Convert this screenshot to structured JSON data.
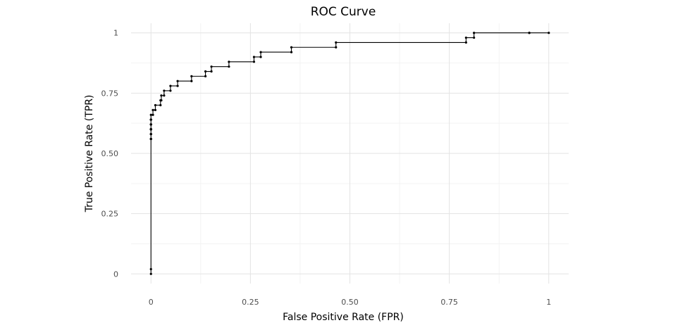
{
  "chart_data": {
    "type": "line",
    "title": "ROC Curve",
    "xlabel": "False Positive Rate (FPR)",
    "ylabel": "True Positive Rate (TPR)",
    "xlim": [
      -0.05,
      1.05
    ],
    "ylim": [
      -0.04,
      1.04
    ],
    "xticks": [
      0,
      0.25,
      0.5,
      0.75,
      1
    ],
    "xtick_labels": [
      "0",
      "0.25",
      "0.50",
      "0.75",
      "1"
    ],
    "yticks": [
      0,
      0.25,
      0.5,
      0.75,
      1
    ],
    "ytick_labels": [
      "0",
      "0.25",
      "0.50",
      "0.75",
      "1"
    ],
    "grid": true,
    "legend": "none",
    "line_color": "#000000",
    "series": [
      {
        "fpr": [
          0.0,
          0.0,
          0.0,
          0.0,
          0.0,
          0.0,
          0.0,
          0.0,
          0.0,
          0.0,
          0.0,
          0.0,
          0.0,
          0.0,
          0.0,
          0.0,
          0.0,
          0.0,
          0.0,
          0.0,
          0.0,
          0.0,
          0.0,
          0.0,
          0.0,
          0.0,
          0.0,
          0.0,
          0.0,
          0.0,
          0.005,
          0.005,
          0.011,
          0.011,
          0.024,
          0.024,
          0.026,
          0.026,
          0.033,
          0.033,
          0.049,
          0.049,
          0.067,
          0.067,
          0.102,
          0.102,
          0.137,
          0.137,
          0.152,
          0.152,
          0.196,
          0.196,
          0.259,
          0.259,
          0.276,
          0.276,
          0.353,
          0.353,
          0.465,
          0.465,
          0.792,
          0.792,
          0.812,
          0.812,
          0.951,
          0.951,
          1.0
        ],
        "tpr": [
          0.0,
          0.02,
          0.56,
          0.56,
          0.56,
          0.58,
          0.58,
          0.58,
          0.6,
          0.6,
          0.6,
          0.6,
          0.6,
          0.6,
          0.6,
          0.6,
          0.62,
          0.62,
          0.62,
          0.62,
          0.64,
          0.64,
          0.64,
          0.64,
          0.64,
          0.64,
          0.64,
          0.64,
          0.64,
          0.66,
          0.66,
          0.68,
          0.68,
          0.7,
          0.7,
          0.72,
          0.72,
          0.74,
          0.74,
          0.76,
          0.76,
          0.78,
          0.78,
          0.8,
          0.8,
          0.82,
          0.82,
          0.84,
          0.84,
          0.86,
          0.86,
          0.88,
          0.88,
          0.9,
          0.9,
          0.92,
          0.92,
          0.94,
          0.94,
          0.96,
          0.96,
          0.98,
          0.98,
          1.0,
          1.0,
          1.0,
          1.0
        ]
      }
    ]
  }
}
